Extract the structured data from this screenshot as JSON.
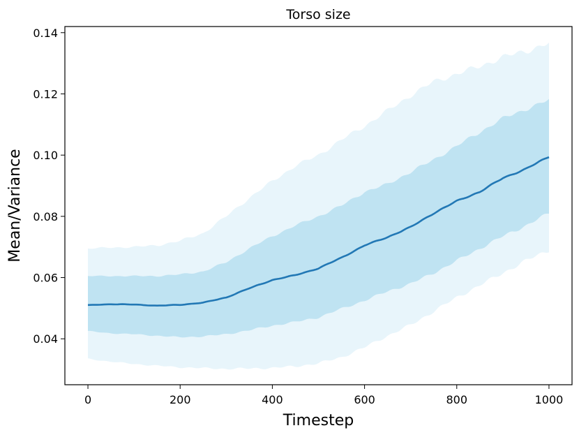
{
  "chart_data": {
    "type": "line",
    "title": "Torso size",
    "xlabel": "Timestep",
    "ylabel": "Mean/Variance",
    "xlim": [
      -50,
      1050
    ],
    "ylim": [
      0.025,
      0.142
    ],
    "xticks": [
      0,
      200,
      400,
      600,
      800,
      1000
    ],
    "yticks": [
      0.04,
      0.06,
      0.08,
      0.1,
      0.12,
      0.14
    ],
    "xtick_labels": [
      "0",
      "200",
      "400",
      "600",
      "800",
      "1000"
    ],
    "ytick_labels": [
      "0.04",
      "0.06",
      "0.08",
      "0.10",
      "0.12",
      "0.14"
    ],
    "grid": false,
    "legend": "none",
    "colors": {
      "mean_line": "#2278b5",
      "inner_band": "#bfe3f2",
      "outer_band": "#e8f5fb"
    },
    "series": [
      {
        "x": [
          0,
          50,
          100,
          150,
          200,
          250,
          300,
          350,
          400,
          450,
          500,
          550,
          600,
          650,
          700,
          750,
          800,
          850,
          900,
          950,
          1000
        ],
        "mean": [
          0.051,
          0.0513,
          0.0512,
          0.0508,
          0.0511,
          0.0518,
          0.0535,
          0.0565,
          0.0592,
          0.0608,
          0.063,
          0.0665,
          0.0705,
          0.0732,
          0.0765,
          0.081,
          0.085,
          0.088,
          0.0925,
          0.0955,
          0.0995
        ],
        "inner_lower": [
          0.0425,
          0.0418,
          0.0415,
          0.041,
          0.0405,
          0.0408,
          0.0415,
          0.0428,
          0.0443,
          0.0455,
          0.047,
          0.0498,
          0.0525,
          0.0555,
          0.058,
          0.0615,
          0.0655,
          0.0695,
          0.0735,
          0.077,
          0.081
        ],
        "inner_upper": [
          0.0605,
          0.0605,
          0.0605,
          0.0605,
          0.061,
          0.062,
          0.065,
          0.0695,
          0.0735,
          0.077,
          0.08,
          0.0835,
          0.088,
          0.0905,
          0.0945,
          0.0985,
          0.103,
          0.1075,
          0.112,
          0.115,
          0.118
        ],
        "outer_lower": [
          0.0335,
          0.0325,
          0.0318,
          0.0312,
          0.0307,
          0.0304,
          0.0302,
          0.0303,
          0.0305,
          0.031,
          0.032,
          0.034,
          0.0372,
          0.041,
          0.0445,
          0.049,
          0.0535,
          0.0575,
          0.0615,
          0.0655,
          0.069
        ],
        "outer_upper": [
          0.0695,
          0.0698,
          0.07,
          0.0705,
          0.072,
          0.0745,
          0.08,
          0.086,
          0.0915,
          0.0965,
          0.1,
          0.105,
          0.1095,
          0.1145,
          0.1195,
          0.124,
          0.1265,
          0.129,
          0.132,
          0.134,
          0.1365
        ]
      }
    ]
  }
}
